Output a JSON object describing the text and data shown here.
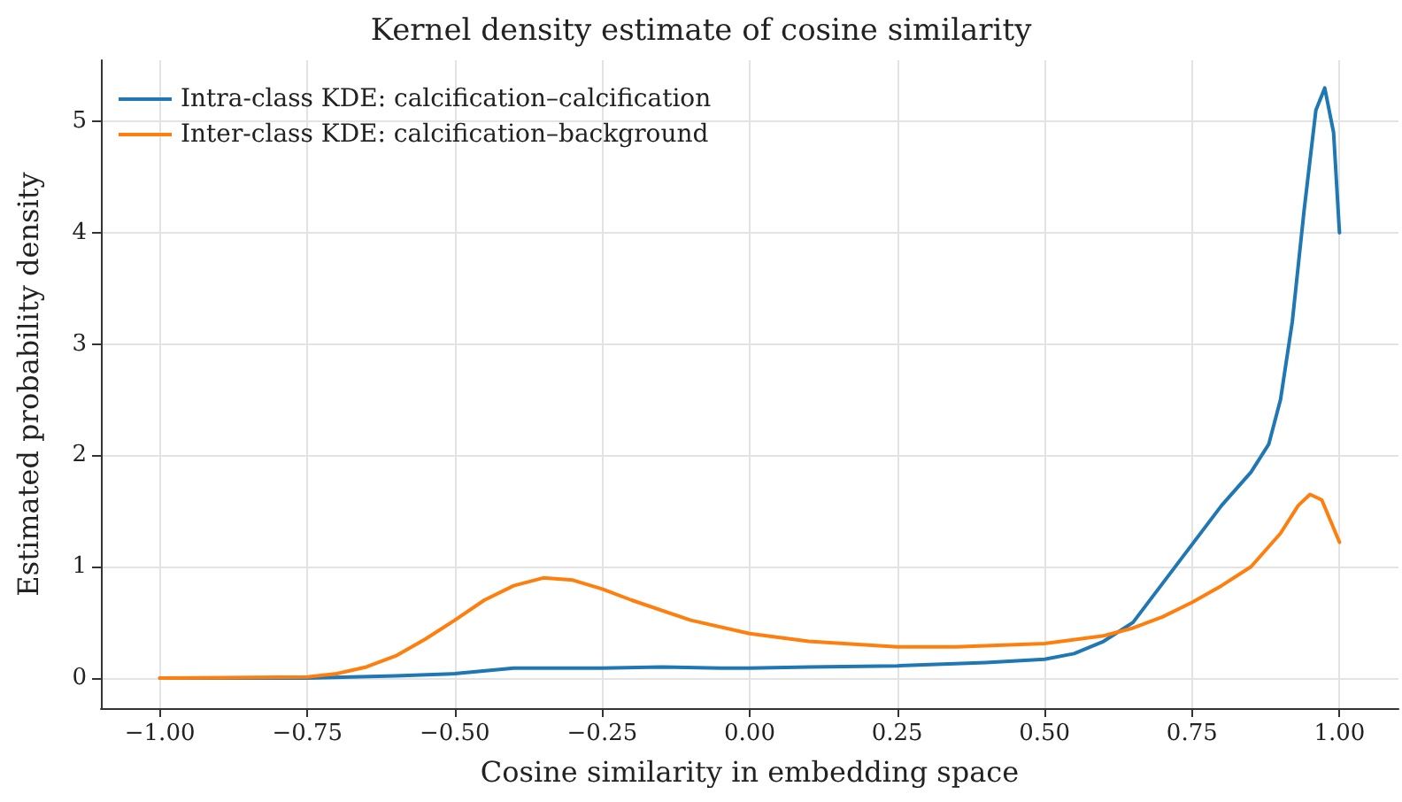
{
  "chart_data": {
    "type": "line",
    "title": "Kernel density estimate of cosine similarity",
    "xlabel": "Cosine similarity in embedding space",
    "ylabel": "Estimated probability density",
    "xlim": [
      -1.1,
      1.1
    ],
    "xticks": [
      {
        "value": -1,
        "label": "−1.00"
      },
      {
        "value": -0.75,
        "label": "−0.75"
      },
      {
        "value": -0.5,
        "label": "−0.50"
      },
      {
        "value": -0.25,
        "label": "−0.25"
      },
      {
        "value": 0,
        "label": "0.00"
      },
      {
        "value": 0.25,
        "label": "0.25"
      },
      {
        "value": 0.5,
        "label": "0.50"
      },
      {
        "value": 0.75,
        "label": "0.75"
      },
      {
        "value": 1,
        "label": "1.00"
      }
    ],
    "ylim": [
      -0.27,
      5.55
    ],
    "yticks": [
      0,
      1,
      2,
      3,
      4,
      5
    ],
    "grid": true,
    "legend": "top left",
    "marker": "none",
    "line_style": "solid",
    "series": [
      {
        "name": "Intra-class KDE: calcification–calcification",
        "color": "#1f77b4",
        "x": [
          -1,
          -0.75,
          -0.6,
          -0.5,
          -0.4,
          -0.25,
          -0.15,
          -0.05,
          0,
          0.1,
          0.25,
          0.4,
          0.5,
          0.55,
          0.6,
          0.65,
          0.7,
          0.75,
          0.8,
          0.85,
          0.88,
          0.9,
          0.92,
          0.94,
          0.96,
          0.975,
          0.99,
          1.0
        ],
        "values": [
          0,
          0,
          0.02,
          0.04,
          0.09,
          0.09,
          0.1,
          0.09,
          0.09,
          0.1,
          0.11,
          0.14,
          0.17,
          0.22,
          0.33,
          0.5,
          0.85,
          1.2,
          1.55,
          1.85,
          2.1,
          2.5,
          3.2,
          4.2,
          5.1,
          5.3,
          4.9,
          4.0
        ]
      },
      {
        "name": "Inter-class KDE: calcification–background",
        "color": "#ff7f0e",
        "x": [
          -1,
          -0.75,
          -0.7,
          -0.65,
          -0.6,
          -0.55,
          -0.5,
          -0.45,
          -0.4,
          -0.35,
          -0.3,
          -0.25,
          -0.2,
          -0.1,
          0,
          0.1,
          0.25,
          0.35,
          0.5,
          0.6,
          0.65,
          0.7,
          0.75,
          0.8,
          0.85,
          0.9,
          0.93,
          0.95,
          0.97,
          1.0
        ],
        "values": [
          0,
          0.01,
          0.04,
          0.1,
          0.2,
          0.35,
          0.52,
          0.7,
          0.83,
          0.9,
          0.88,
          0.8,
          0.7,
          0.52,
          0.4,
          0.33,
          0.28,
          0.28,
          0.31,
          0.38,
          0.45,
          0.55,
          0.68,
          0.83,
          1.0,
          1.3,
          1.55,
          1.65,
          1.6,
          1.22
        ]
      }
    ]
  }
}
